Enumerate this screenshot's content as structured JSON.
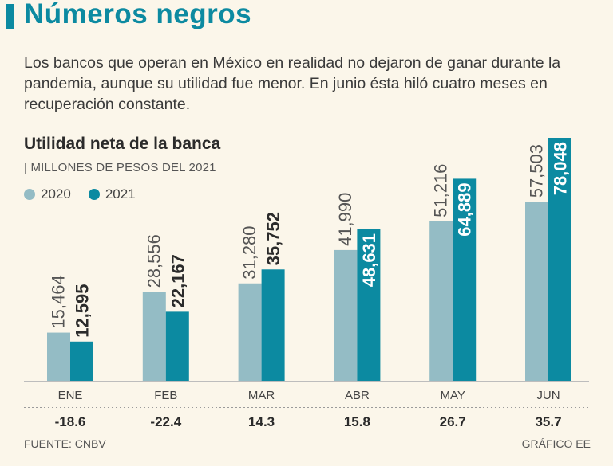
{
  "header": {
    "title": "Números negros",
    "intro": "Los bancos que operan en México en realidad no dejaron de ganar durante la pandemia, aunque su utilidad fue menor. En junio ésta hiló cuatro meses en recuperación constante."
  },
  "colors": {
    "accent": "#0c8aa1",
    "series_2020": "#94bcc5",
    "series_2021": "#0c8aa1",
    "background": "#fbf6ea"
  },
  "chart_data": {
    "type": "bar",
    "title": "Utilidad neta de la banca",
    "subtitle": "| MILLONES DE PESOS DEL 2021",
    "categories": [
      "ENE",
      "FEB",
      "MAR",
      "ABR",
      "MAY",
      "JUN"
    ],
    "series": [
      {
        "name": "2020",
        "values": [
          15464,
          28556,
          31280,
          41990,
          51216,
          57503
        ],
        "labels": [
          "15,464",
          "28,556",
          "31,280",
          "41,990",
          "51,216",
          "57,503"
        ]
      },
      {
        "name": "2021",
        "values": [
          12595,
          22167,
          35752,
          48631,
          64889,
          78048
        ],
        "labels": [
          "12,595",
          "22,167",
          "35,752",
          "48,631",
          "64,889",
          "78,048"
        ]
      }
    ],
    "change_row": [
      "-18.6",
      "-22.4",
      "14.3",
      "15.8",
      "26.7",
      "35.7"
    ],
    "ylim": [
      0,
      78048
    ],
    "grid": false,
    "legend_position": "top-left"
  },
  "footer": {
    "source": "FUENTE: CNBV",
    "credit": "GRÁFICO EE"
  }
}
